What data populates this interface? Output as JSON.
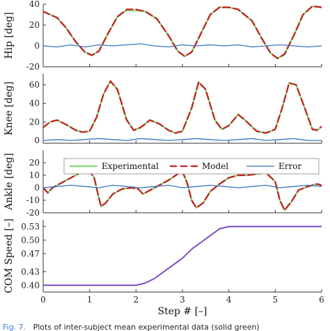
{
  "caption": {
    "label": "Fig. 7.",
    "text": "Plots of inter-subject mean experimental data (solid green)"
  },
  "colors": {
    "experimental": "#8fdc86",
    "model": "#c81e1e",
    "error": "#3a74c4",
    "com_speed": "#7b4bc0",
    "axis": "#333333"
  },
  "chart_data": [
    {
      "type": "line",
      "ylabel": "Hip [deg]",
      "xlim": [
        0,
        6
      ],
      "ylim": [
        -20,
        40
      ],
      "yticks": [
        -20,
        0,
        20,
        40
      ],
      "grid": false,
      "series": [
        {
          "name": "Experimental",
          "x": [
            0,
            0.3,
            0.5,
            0.7,
            0.9,
            1.05,
            1.2,
            1.4,
            1.6,
            1.8,
            2.0,
            2.2,
            2.45,
            2.7,
            2.9,
            3.05,
            3.2,
            3.4,
            3.6,
            3.8,
            4.0,
            4.2,
            4.5,
            4.7,
            4.9,
            5.05,
            5.2,
            5.4,
            5.6,
            5.8,
            6.0
          ],
          "y": [
            33,
            27,
            17,
            4,
            -6,
            -9,
            -5,
            12,
            28,
            34,
            34,
            33,
            26,
            10,
            -5,
            -10,
            -6,
            12,
            30,
            37,
            37,
            35,
            24,
            8,
            -7,
            -12,
            -8,
            10,
            30,
            38,
            37
          ]
        },
        {
          "name": "Model",
          "x": [
            0,
            0.3,
            0.5,
            0.7,
            0.9,
            1.05,
            1.2,
            1.4,
            1.6,
            1.8,
            2.0,
            2.2,
            2.45,
            2.7,
            2.9,
            3.05,
            3.2,
            3.4,
            3.6,
            3.8,
            4.0,
            4.2,
            4.5,
            4.7,
            4.9,
            5.05,
            5.2,
            5.4,
            5.6,
            5.8,
            6.0
          ],
          "y": [
            33,
            27,
            17,
            4,
            -6,
            -9,
            -5,
            12,
            28,
            35,
            35,
            33,
            26,
            10,
            -5,
            -10,
            -6,
            12,
            30,
            37,
            37,
            35,
            24,
            8,
            -7,
            -12,
            -8,
            10,
            30,
            38,
            37
          ]
        },
        {
          "name": "Error",
          "x": [
            0,
            0.3,
            0.6,
            0.9,
            1.2,
            1.5,
            1.8,
            2.1,
            2.4,
            2.7,
            3.0,
            3.3,
            3.6,
            3.9,
            4.2,
            4.5,
            4.8,
            5.1,
            5.4,
            5.7,
            6.0
          ],
          "y": [
            0,
            -1,
            1,
            -1,
            1,
            0,
            1,
            2,
            0,
            -1,
            1,
            0,
            1,
            0,
            1,
            -1,
            0,
            1,
            0,
            -1,
            0
          ]
        }
      ]
    },
    {
      "type": "line",
      "ylabel": "Knee [deg]",
      "xlim": [
        0,
        6
      ],
      "ylim": [
        -3,
        72
      ],
      "yticks": [
        0,
        20,
        40,
        60
      ],
      "grid": false,
      "series": [
        {
          "name": "Experimental",
          "x": [
            0,
            0.15,
            0.3,
            0.5,
            0.7,
            0.85,
            1.0,
            1.15,
            1.3,
            1.45,
            1.6,
            1.8,
            1.95,
            2.1,
            2.3,
            2.5,
            2.7,
            2.85,
            3.0,
            3.2,
            3.35,
            3.5,
            3.7,
            3.85,
            4.0,
            4.2,
            4.35,
            4.6,
            4.8,
            5.0,
            5.15,
            5.3,
            5.45,
            5.6,
            5.8,
            5.9,
            6.0
          ],
          "y": [
            14,
            20,
            22,
            17,
            11,
            9,
            10,
            25,
            50,
            64,
            55,
            22,
            11,
            14,
            22,
            18,
            11,
            8,
            10,
            35,
            63,
            55,
            22,
            12,
            16,
            28,
            22,
            10,
            8,
            12,
            35,
            62,
            60,
            40,
            12,
            11,
            15
          ]
        },
        {
          "name": "Model",
          "x": [
            0,
            0.15,
            0.3,
            0.5,
            0.7,
            0.85,
            1.0,
            1.15,
            1.3,
            1.45,
            1.6,
            1.8,
            1.95,
            2.1,
            2.3,
            2.5,
            2.7,
            2.85,
            3.0,
            3.2,
            3.35,
            3.5,
            3.7,
            3.85,
            4.0,
            4.2,
            4.35,
            4.6,
            4.8,
            5.0,
            5.15,
            5.3,
            5.45,
            5.6,
            5.8,
            5.9,
            6.0
          ],
          "y": [
            14,
            20,
            22,
            17,
            11,
            9,
            10,
            25,
            50,
            64,
            55,
            22,
            11,
            14,
            22,
            18,
            11,
            8,
            10,
            35,
            63,
            55,
            22,
            12,
            16,
            28,
            22,
            10,
            8,
            12,
            35,
            62,
            60,
            40,
            12,
            11,
            15
          ]
        },
        {
          "name": "Error",
          "x": [
            0,
            0.3,
            0.6,
            0.9,
            1.2,
            1.5,
            1.8,
            2.1,
            2.4,
            2.7,
            3.0,
            3.3,
            3.6,
            3.9,
            4.2,
            4.5,
            4.8,
            5.1,
            5.4,
            5.7,
            6.0
          ],
          "y": [
            0,
            1,
            0,
            1,
            2,
            1,
            0,
            2,
            1,
            0,
            1,
            2,
            1,
            0,
            1,
            2,
            0,
            1,
            2,
            0,
            0
          ]
        }
      ]
    },
    {
      "type": "line",
      "ylabel": "Ankle [deg]",
      "xlim": [
        0,
        6
      ],
      "ylim": [
        -20,
        30
      ],
      "yticks": [
        -20,
        -10,
        0,
        10,
        20
      ],
      "grid": false,
      "legend": "top",
      "series": [
        {
          "name": "Experimental",
          "x": [
            0,
            0.1,
            0.2,
            0.4,
            0.6,
            0.8,
            1.0,
            1.1,
            1.2,
            1.25,
            1.35,
            1.5,
            1.7,
            1.9,
            2.05,
            2.15,
            2.3,
            2.5,
            2.7,
            2.9,
            3.0,
            3.1,
            3.2,
            3.3,
            3.45,
            3.6,
            3.8,
            4.0,
            4.2,
            4.4,
            4.6,
            4.8,
            5.0,
            5.1,
            5.2,
            5.35,
            5.5,
            5.7,
            5.9,
            6.0
          ],
          "y": [
            0,
            -4,
            0,
            4,
            8,
            12,
            13,
            8,
            -8,
            -15,
            -12,
            -5,
            -1,
            0,
            -1,
            -5,
            -2,
            2,
            6,
            11,
            13,
            4,
            -10,
            -16,
            -12,
            -3,
            3,
            8,
            10,
            10,
            11,
            12,
            5,
            -10,
            -18,
            -11,
            -2,
            1,
            3,
            2
          ]
        },
        {
          "name": "Model",
          "x": [
            0,
            0.1,
            0.2,
            0.4,
            0.6,
            0.8,
            1.0,
            1.1,
            1.2,
            1.25,
            1.35,
            1.5,
            1.7,
            1.9,
            2.05,
            2.15,
            2.3,
            2.5,
            2.7,
            2.9,
            3.0,
            3.1,
            3.2,
            3.3,
            3.45,
            3.6,
            3.8,
            4.0,
            4.2,
            4.4,
            4.6,
            4.8,
            5.0,
            5.1,
            5.2,
            5.35,
            5.5,
            5.7,
            5.9,
            6.0
          ],
          "y": [
            0,
            -4,
            0,
            4,
            8,
            12,
            13,
            8,
            -8,
            -15,
            -12,
            -5,
            -1,
            0,
            -1,
            -5,
            -2,
            2,
            6,
            11,
            13,
            4,
            -10,
            -16,
            -12,
            -3,
            3,
            8,
            10,
            10,
            11,
            12,
            5,
            -10,
            -18,
            -11,
            -2,
            1,
            3,
            2
          ]
        },
        {
          "name": "Error",
          "x": [
            0,
            0.3,
            0.6,
            0.9,
            1.2,
            1.5,
            1.8,
            2.1,
            2.4,
            2.7,
            3.0,
            3.3,
            3.6,
            3.9,
            4.2,
            4.5,
            4.8,
            5.1,
            5.4,
            5.7,
            6.0
          ],
          "y": [
            0,
            1,
            2,
            1,
            0,
            2,
            1,
            0,
            1,
            2,
            0,
            1,
            2,
            1,
            0,
            1,
            2,
            0,
            1,
            2,
            1
          ]
        }
      ]
    },
    {
      "type": "line",
      "ylabel": "COM Speed [–]",
      "xlabel": "Step # [–]",
      "xlim": [
        0,
        6
      ],
      "xticks": [
        0,
        1,
        2,
        3,
        4,
        5,
        6
      ],
      "ylim": [
        0.385,
        0.545
      ],
      "yticks": [
        0.4,
        0.43,
        0.47,
        0.5,
        0.53
      ],
      "ytick_labels": [
        "0.40",
        "0.43",
        "0.47",
        "0.50",
        "0.53"
      ],
      "grid": false,
      "series": [
        {
          "x": [
            0,
            2.0,
            2.2,
            2.4,
            2.6,
            2.8,
            3.0,
            3.2,
            3.4,
            3.6,
            3.8,
            4.0,
            6.0
          ],
          "y": [
            0.4,
            0.4,
            0.405,
            0.415,
            0.43,
            0.445,
            0.46,
            0.48,
            0.495,
            0.51,
            0.525,
            0.53,
            0.53
          ]
        }
      ]
    }
  ]
}
